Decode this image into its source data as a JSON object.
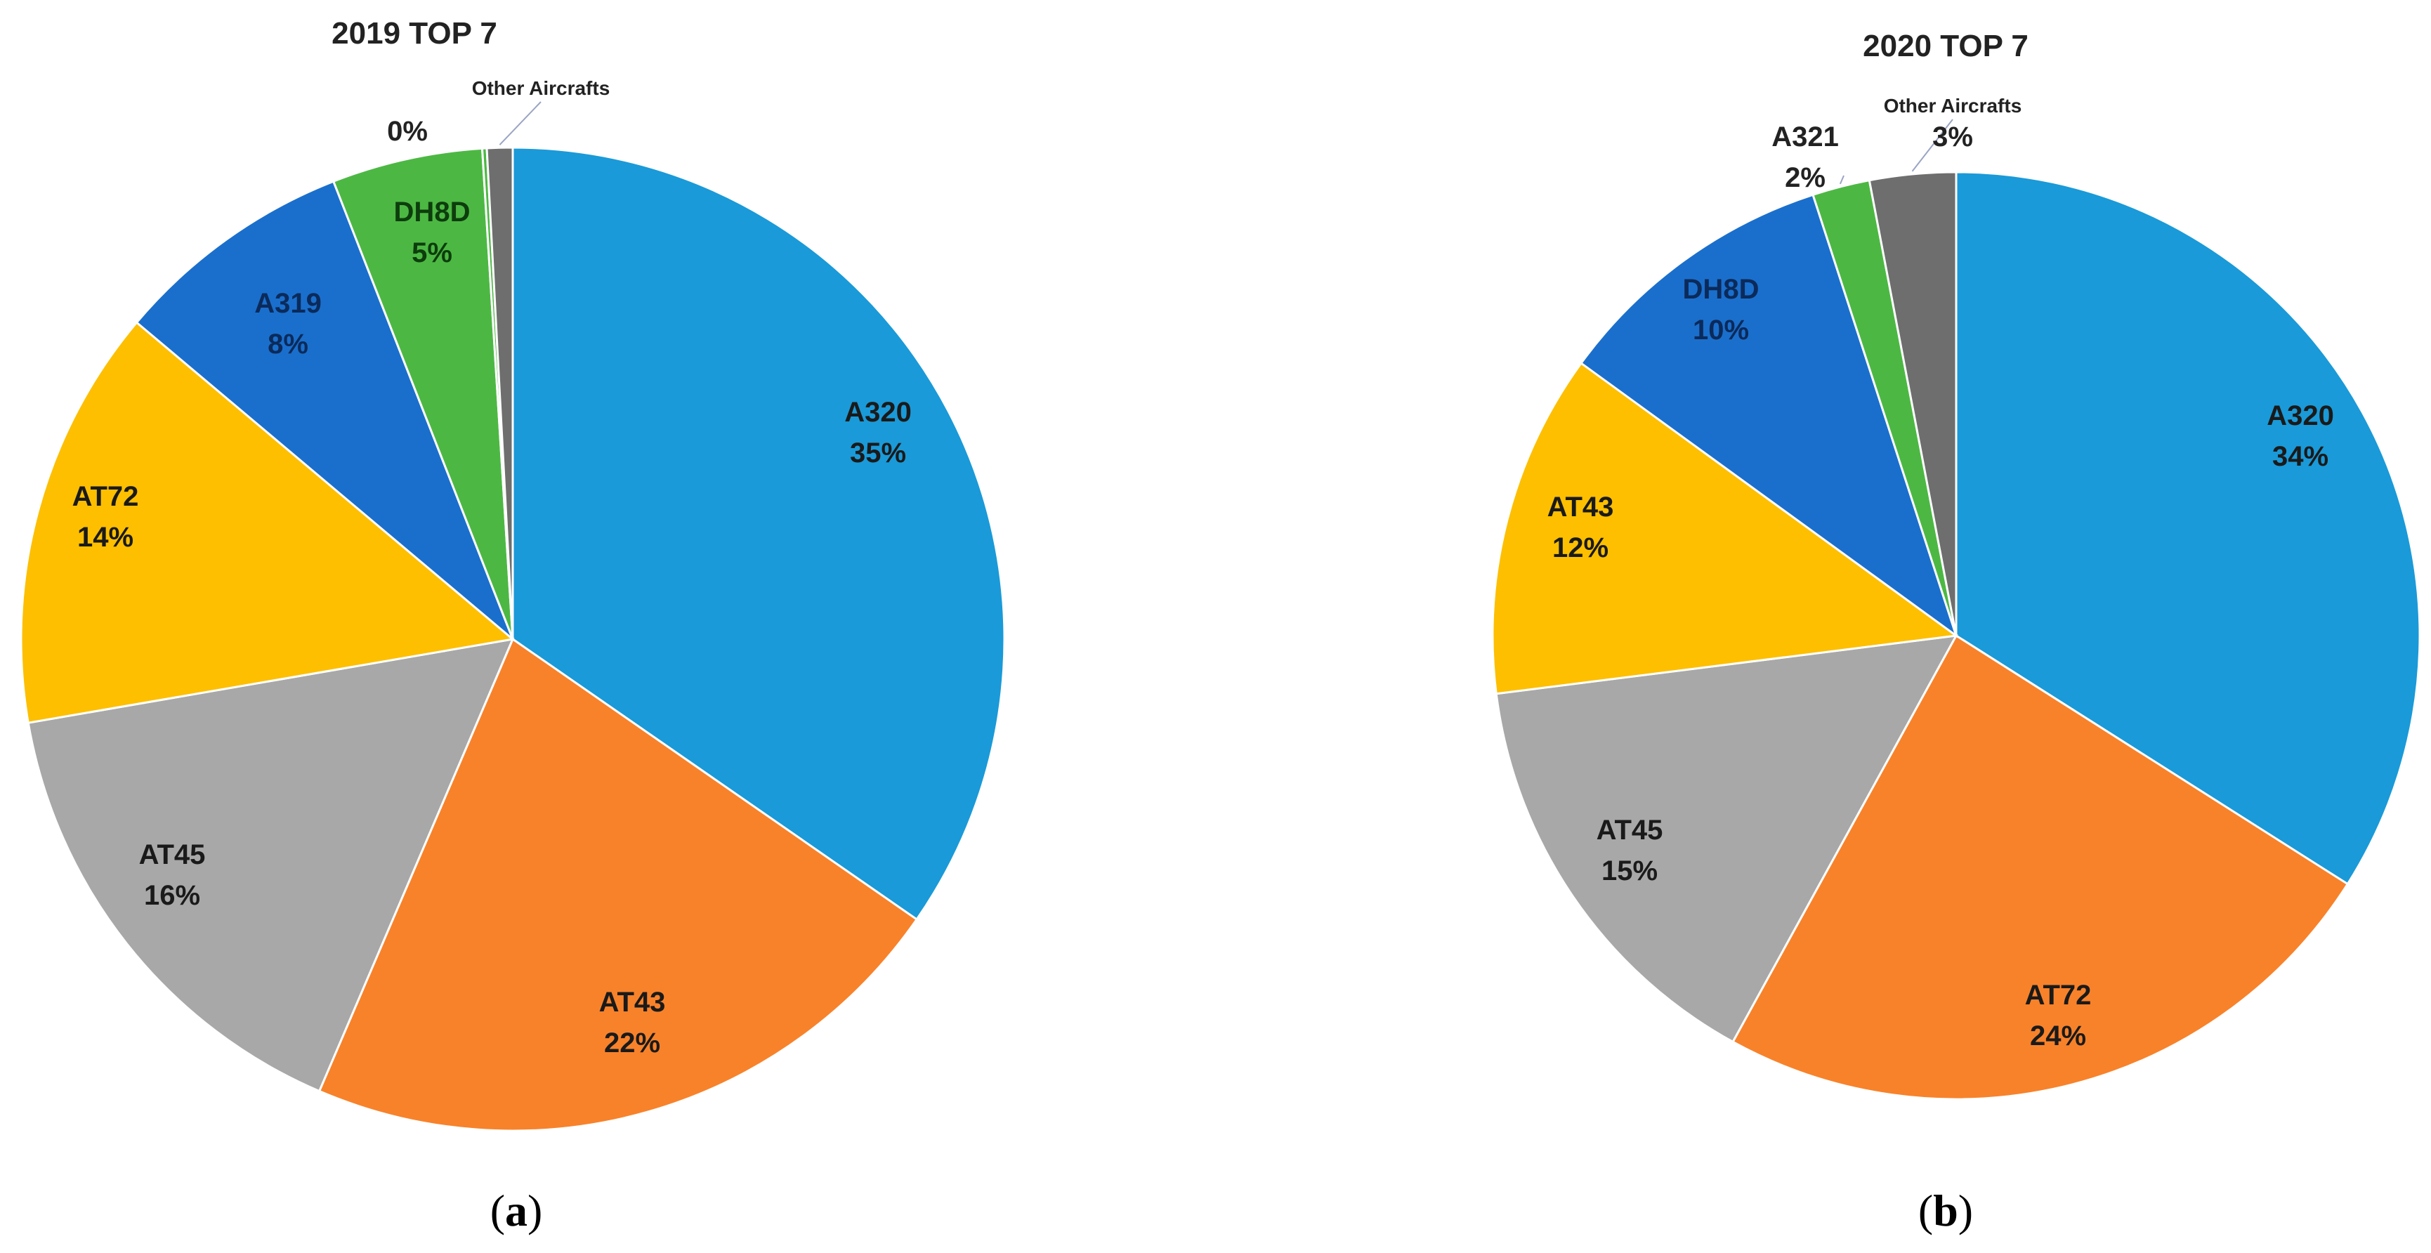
{
  "chart_data": [
    {
      "type": "pie",
      "title": "2019 TOP 7",
      "caption": {
        "open": "(",
        "letter": "a",
        "close": ")"
      },
      "slices": [
        {
          "name": "A320",
          "value": 35,
          "label": "35%",
          "color": "#1a9ad8"
        },
        {
          "name": "AT43",
          "value": 22,
          "label": "22%",
          "color": "#f8822a"
        },
        {
          "name": "AT45",
          "value": 16,
          "label": "16%",
          "color": "#a8a8a8"
        },
        {
          "name": "AT72",
          "value": 14,
          "label": "14%",
          "color": "#fdbf00"
        },
        {
          "name": "A319",
          "value": 8,
          "label": "8%",
          "color": "#1a6fcc"
        },
        {
          "name": "DH8D",
          "value": 5,
          "label": "5%",
          "color": "#4cb843"
        },
        {
          "name": "",
          "value": 0.15,
          "label": "0%",
          "color": "#4cb843"
        },
        {
          "name": "Other Aircrafts",
          "value": 0.85,
          "label": "",
          "color": "#6e6e6e"
        }
      ]
    },
    {
      "type": "pie",
      "title": "2020 TOP 7",
      "caption": {
        "open": "(",
        "letter": "b",
        "close": ")"
      },
      "slices": [
        {
          "name": "A320",
          "value": 34,
          "label": "34%",
          "color": "#1a9ad8"
        },
        {
          "name": "AT72",
          "value": 24,
          "label": "24%",
          "color": "#f8822a"
        },
        {
          "name": "AT45",
          "value": 15,
          "label": "15%",
          "color": "#a8a8a8"
        },
        {
          "name": "AT43",
          "value": 12,
          "label": "12%",
          "color": "#fdbf00"
        },
        {
          "name": "DH8D",
          "value": 10,
          "label": "10%",
          "color": "#1a6fcc"
        },
        {
          "name": "A321",
          "value": 2,
          "label": "2%",
          "color": "#4cb843"
        },
        {
          "name": "Other Aircrafts",
          "value": 3,
          "label": "3%",
          "color": "#6e6e6e"
        }
      ]
    }
  ]
}
